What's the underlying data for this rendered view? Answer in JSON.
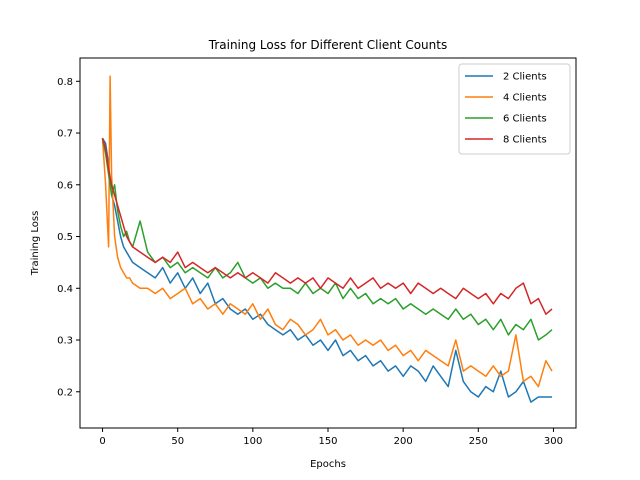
{
  "chart_data": {
    "type": "line",
    "title": "Training Loss for Different Client Counts",
    "xlabel": "Epochs",
    "ylabel": "Training Loss",
    "xlim": [
      -15,
      315
    ],
    "ylim": [
      0.13,
      0.845
    ],
    "x_ticks": [
      0,
      50,
      100,
      150,
      200,
      250,
      300
    ],
    "y_ticks": [
      0.2,
      0.3,
      0.4,
      0.5,
      0.6,
      0.7,
      0.8
    ],
    "grid": false,
    "legend_position": "top-right",
    "series": [
      {
        "name": "2 Clients",
        "color": "#1f77b4",
        "x": [
          0,
          2,
          4,
          6,
          8,
          10,
          12,
          14,
          16,
          18,
          20,
          25,
          30,
          35,
          40,
          45,
          50,
          55,
          60,
          65,
          70,
          75,
          80,
          85,
          90,
          95,
          100,
          105,
          110,
          115,
          120,
          125,
          130,
          135,
          140,
          145,
          150,
          155,
          160,
          165,
          170,
          175,
          180,
          185,
          190,
          195,
          200,
          205,
          210,
          215,
          220,
          225,
          230,
          235,
          240,
          245,
          250,
          255,
          260,
          265,
          270,
          275,
          280,
          285,
          290,
          295,
          299
        ],
        "y": [
          0.69,
          0.68,
          0.64,
          0.58,
          0.56,
          0.53,
          0.5,
          0.48,
          0.47,
          0.46,
          0.45,
          0.44,
          0.43,
          0.42,
          0.44,
          0.41,
          0.43,
          0.4,
          0.42,
          0.39,
          0.41,
          0.37,
          0.38,
          0.36,
          0.35,
          0.36,
          0.34,
          0.35,
          0.33,
          0.32,
          0.31,
          0.32,
          0.3,
          0.31,
          0.29,
          0.3,
          0.28,
          0.3,
          0.27,
          0.28,
          0.26,
          0.27,
          0.25,
          0.26,
          0.24,
          0.25,
          0.23,
          0.25,
          0.24,
          0.22,
          0.25,
          0.23,
          0.21,
          0.28,
          0.22,
          0.2,
          0.19,
          0.21,
          0.2,
          0.24,
          0.19,
          0.2,
          0.22,
          0.18,
          0.19,
          0.19,
          0.19
        ]
      },
      {
        "name": "4 Clients",
        "color": "#ff7f0e",
        "x": [
          0,
          2,
          4,
          5,
          6,
          8,
          10,
          12,
          14,
          16,
          18,
          20,
          25,
          30,
          35,
          40,
          45,
          50,
          55,
          60,
          65,
          70,
          75,
          80,
          85,
          90,
          95,
          100,
          105,
          110,
          115,
          120,
          125,
          130,
          135,
          140,
          145,
          150,
          155,
          160,
          165,
          170,
          175,
          180,
          185,
          190,
          195,
          200,
          205,
          210,
          215,
          220,
          225,
          230,
          235,
          240,
          245,
          250,
          255,
          260,
          265,
          270,
          275,
          280,
          285,
          290,
          295,
          299
        ],
        "y": [
          0.69,
          0.6,
          0.48,
          0.81,
          0.62,
          0.5,
          0.46,
          0.44,
          0.43,
          0.42,
          0.42,
          0.41,
          0.4,
          0.4,
          0.39,
          0.4,
          0.38,
          0.39,
          0.4,
          0.37,
          0.38,
          0.36,
          0.37,
          0.35,
          0.37,
          0.36,
          0.35,
          0.37,
          0.34,
          0.36,
          0.33,
          0.32,
          0.34,
          0.33,
          0.31,
          0.32,
          0.34,
          0.31,
          0.32,
          0.3,
          0.31,
          0.29,
          0.3,
          0.29,
          0.3,
          0.28,
          0.29,
          0.27,
          0.28,
          0.26,
          0.28,
          0.27,
          0.26,
          0.25,
          0.3,
          0.24,
          0.25,
          0.24,
          0.23,
          0.25,
          0.23,
          0.24,
          0.31,
          0.22,
          0.23,
          0.21,
          0.26,
          0.24
        ]
      },
      {
        "name": "6 Clients",
        "color": "#2ca02c",
        "x": [
          0,
          2,
          4,
          6,
          8,
          10,
          12,
          14,
          16,
          18,
          20,
          25,
          30,
          35,
          40,
          45,
          50,
          55,
          60,
          65,
          70,
          75,
          80,
          85,
          90,
          95,
          100,
          105,
          110,
          115,
          120,
          125,
          130,
          135,
          140,
          145,
          150,
          155,
          160,
          165,
          170,
          175,
          180,
          185,
          190,
          195,
          200,
          205,
          210,
          215,
          220,
          225,
          230,
          235,
          240,
          245,
          250,
          255,
          260,
          265,
          270,
          275,
          280,
          285,
          290,
          295,
          299
        ],
        "y": [
          0.69,
          0.66,
          0.62,
          0.58,
          0.6,
          0.55,
          0.52,
          0.5,
          0.51,
          0.49,
          0.48,
          0.53,
          0.47,
          0.45,
          0.46,
          0.44,
          0.45,
          0.43,
          0.44,
          0.43,
          0.42,
          0.44,
          0.42,
          0.43,
          0.45,
          0.42,
          0.41,
          0.42,
          0.4,
          0.41,
          0.4,
          0.4,
          0.39,
          0.41,
          0.39,
          0.4,
          0.39,
          0.41,
          0.38,
          0.4,
          0.38,
          0.39,
          0.37,
          0.38,
          0.37,
          0.38,
          0.36,
          0.37,
          0.36,
          0.35,
          0.36,
          0.35,
          0.34,
          0.36,
          0.34,
          0.35,
          0.33,
          0.34,
          0.32,
          0.34,
          0.31,
          0.33,
          0.32,
          0.34,
          0.3,
          0.31,
          0.32
        ]
      },
      {
        "name": "8 Clients",
        "color": "#d62728",
        "x": [
          0,
          2,
          4,
          6,
          8,
          10,
          12,
          14,
          16,
          18,
          20,
          25,
          30,
          35,
          40,
          45,
          50,
          55,
          60,
          65,
          70,
          75,
          80,
          85,
          90,
          95,
          100,
          105,
          110,
          115,
          120,
          125,
          130,
          135,
          140,
          145,
          150,
          155,
          160,
          165,
          170,
          175,
          180,
          185,
          190,
          195,
          200,
          205,
          210,
          215,
          220,
          225,
          230,
          235,
          240,
          245,
          250,
          255,
          260,
          265,
          270,
          275,
          280,
          285,
          290,
          295,
          299
        ],
        "y": [
          0.69,
          0.67,
          0.63,
          0.6,
          0.58,
          0.56,
          0.54,
          0.52,
          0.5,
          0.49,
          0.48,
          0.47,
          0.46,
          0.45,
          0.46,
          0.45,
          0.47,
          0.44,
          0.45,
          0.44,
          0.43,
          0.44,
          0.43,
          0.42,
          0.43,
          0.42,
          0.43,
          0.42,
          0.41,
          0.43,
          0.42,
          0.41,
          0.42,
          0.41,
          0.42,
          0.4,
          0.42,
          0.41,
          0.4,
          0.42,
          0.4,
          0.41,
          0.42,
          0.4,
          0.41,
          0.4,
          0.41,
          0.39,
          0.41,
          0.4,
          0.39,
          0.4,
          0.39,
          0.38,
          0.4,
          0.39,
          0.38,
          0.39,
          0.37,
          0.39,
          0.38,
          0.4,
          0.41,
          0.37,
          0.38,
          0.35,
          0.36
        ]
      }
    ]
  }
}
